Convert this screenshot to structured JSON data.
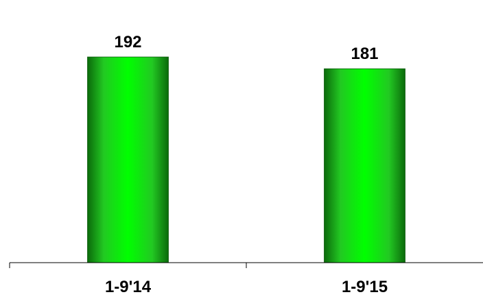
{
  "chart_data": {
    "type": "bar",
    "categories": [
      "1-9'14",
      "1-9'15"
    ],
    "values": [
      192,
      181
    ],
    "title": "",
    "xlabel": "",
    "ylabel": "",
    "ylim": [
      0,
      217
    ],
    "grid": false,
    "legend": "none",
    "colors": {
      "bar_center": "#00ff00",
      "bar_mid": "#22c922",
      "bar_edge": "#0b6a0b",
      "axis": "#000000"
    }
  }
}
